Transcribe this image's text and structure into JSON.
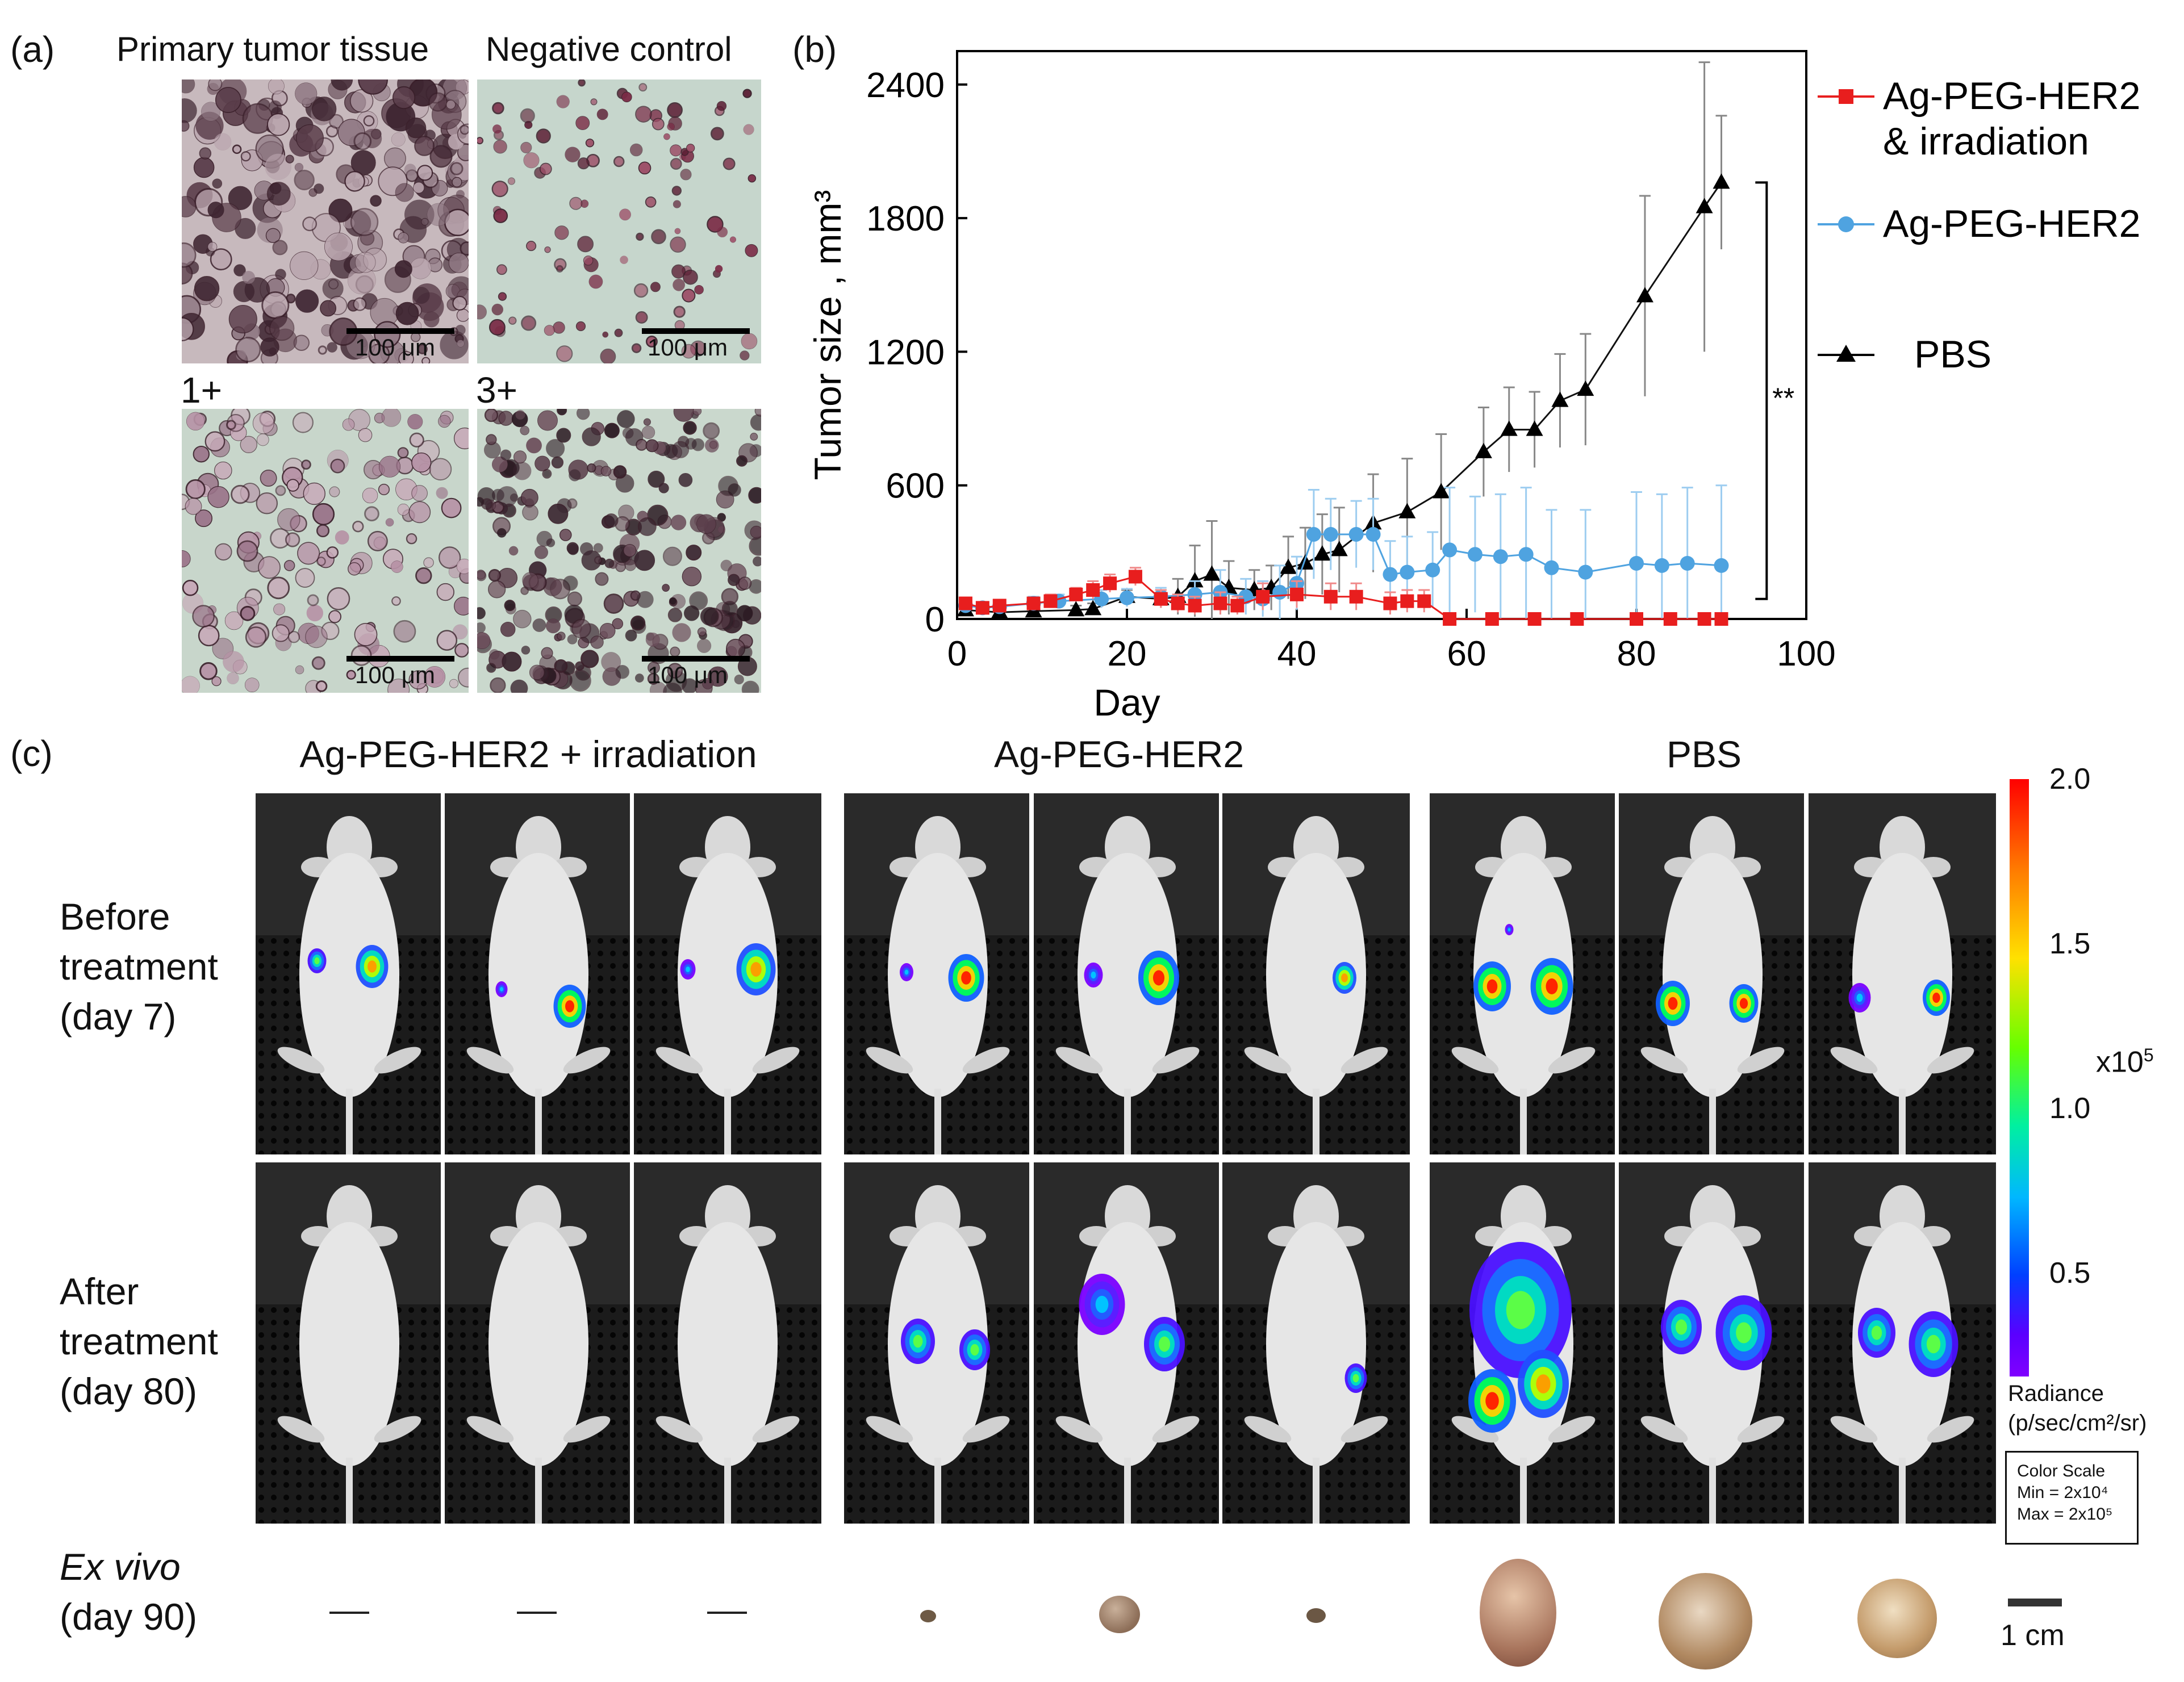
{
  "panel_a": {
    "letter": "(a)",
    "titles": [
      "Primary tumor tissue",
      "Negative control"
    ],
    "grades": [
      "1+",
      "3+"
    ],
    "scalebar_label": "100 μm"
  },
  "panel_b": {
    "letter": "(b)"
  },
  "panel_c": {
    "letter": "(c)",
    "group_titles": [
      "Ag-PEG-HER2 + irradiation",
      "Ag-PEG-HER2",
      "PBS"
    ],
    "rows": {
      "before": [
        "Before",
        "treatment",
        "(day 7)"
      ],
      "after": [
        "After",
        "treatment",
        "(day 80)"
      ],
      "exvivo_1": "Ex vivo",
      "exvivo_2": "(day 90)"
    },
    "colorbar": {
      "ticks": [
        "2.0",
        "1.5",
        "1.0",
        "0.5"
      ],
      "multiplier_base": "x10",
      "multiplier_exp": "5",
      "radiance_1": "Radiance",
      "radiance_2": "(p/sec/cm²/sr)",
      "color_scale_title": "Color Scale",
      "color_scale_min": "Min = 2x10⁴",
      "color_scale_max": "Max = 2x10⁵"
    },
    "scale": "1 cm"
  },
  "chart_data": {
    "type": "line",
    "xlabel": "Day",
    "ylabel": "Tumor size , mm³",
    "xlim": [
      0,
      100
    ],
    "ylim": [
      0,
      2550
    ],
    "xticks": [
      0,
      20,
      40,
      60,
      80,
      100
    ],
    "yticks": [
      0,
      600,
      1200,
      1800,
      2400
    ],
    "significance": "**",
    "series": [
      {
        "name": "PBS",
        "color": "#000000",
        "marker": "triangle",
        "x": [
          1,
          5,
          9,
          14,
          16,
          20,
          24,
          26,
          28,
          30,
          32,
          35,
          37,
          39,
          41,
          43,
          45,
          49,
          53,
          57,
          62,
          65,
          68,
          71,
          74,
          81,
          88,
          90
        ],
        "y": [
          40,
          30,
          35,
          40,
          45,
          100,
          90,
          100,
          170,
          200,
          140,
          130,
          140,
          230,
          250,
          290,
          310,
          430,
          480,
          570,
          750,
          850,
          850,
          980,
          1030,
          1450,
          1850,
          1960
        ],
        "err": [
          20,
          20,
          20,
          20,
          25,
          30,
          40,
          80,
          160,
          240,
          120,
          90,
          100,
          140,
          160,
          180,
          190,
          220,
          240,
          260,
          200,
          190,
          170,
          210,
          250,
          450,
          650,
          300
        ]
      },
      {
        "name": "Ag-PEG-HER2",
        "color": "#4fa3e0",
        "marker": "circle",
        "x": [
          1,
          3,
          5,
          9,
          12,
          17,
          20,
          24,
          28,
          31,
          34,
          36,
          38,
          40,
          42,
          44,
          47,
          49,
          51,
          53,
          56,
          58,
          61,
          64,
          67,
          70,
          74,
          80,
          83,
          86,
          90
        ],
        "y": [
          60,
          50,
          55,
          70,
          80,
          90,
          95,
          100,
          110,
          120,
          100,
          90,
          120,
          160,
          380,
          380,
          380,
          380,
          200,
          210,
          220,
          310,
          290,
          280,
          290,
          230,
          210,
          250,
          240,
          250,
          240
        ],
        "err": [
          20,
          20,
          20,
          30,
          30,
          40,
          40,
          40,
          60,
          100,
          80,
          80,
          120,
          120,
          200,
          160,
          150,
          160,
          150,
          160,
          170,
          280,
          260,
          280,
          300,
          260,
          280,
          320,
          320,
          340,
          360
        ]
      },
      {
        "name": "Ag-PEG-HER2 & irradiation",
        "color": "#e81e1e",
        "marker": "square",
        "x": [
          1,
          3,
          5,
          9,
          11,
          14,
          16,
          18,
          21,
          24,
          26,
          28,
          31,
          33,
          36,
          40,
          44,
          47,
          51,
          53,
          55,
          58,
          63,
          68,
          73,
          80,
          84,
          88,
          90
        ],
        "y": [
          70,
          50,
          60,
          70,
          80,
          110,
          130,
          160,
          190,
          90,
          70,
          60,
          70,
          60,
          100,
          110,
          100,
          100,
          70,
          80,
          80,
          0,
          0,
          0,
          0,
          0,
          0,
          0,
          0
        ],
        "err": [
          20,
          20,
          20,
          25,
          30,
          30,
          40,
          40,
          40,
          40,
          40,
          40,
          50,
          40,
          60,
          60,
          60,
          60,
          50,
          50,
          50,
          0,
          0,
          0,
          0,
          0,
          0,
          0,
          0
        ]
      }
    ],
    "legend": {
      "position": "right",
      "entries": [
        "Ag-PEG-HER2",
        "& irradiation",
        "Ag-PEG-HER2",
        "PBS"
      ]
    }
  }
}
